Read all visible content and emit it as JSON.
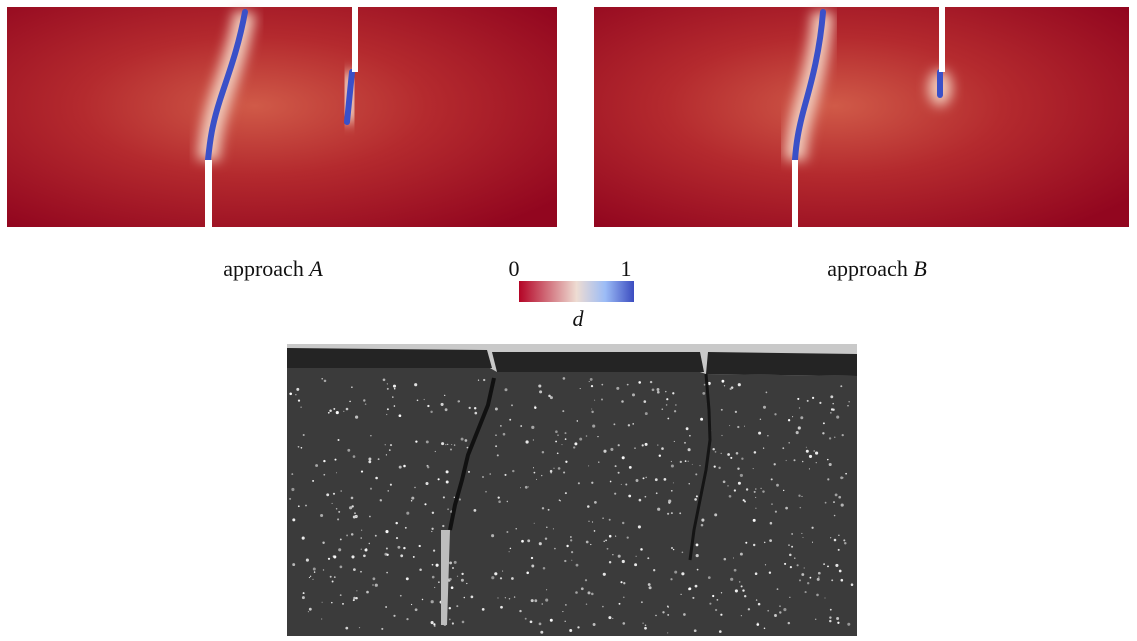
{
  "panels": [
    {
      "caption": {
        "text": "approach",
        "variable": "A"
      }
    },
    {
      "caption": {
        "text": "approach",
        "variable": "B"
      }
    }
  ],
  "colorbar": {
    "min_label": "0",
    "max_label": "1",
    "label": "d"
  }
}
